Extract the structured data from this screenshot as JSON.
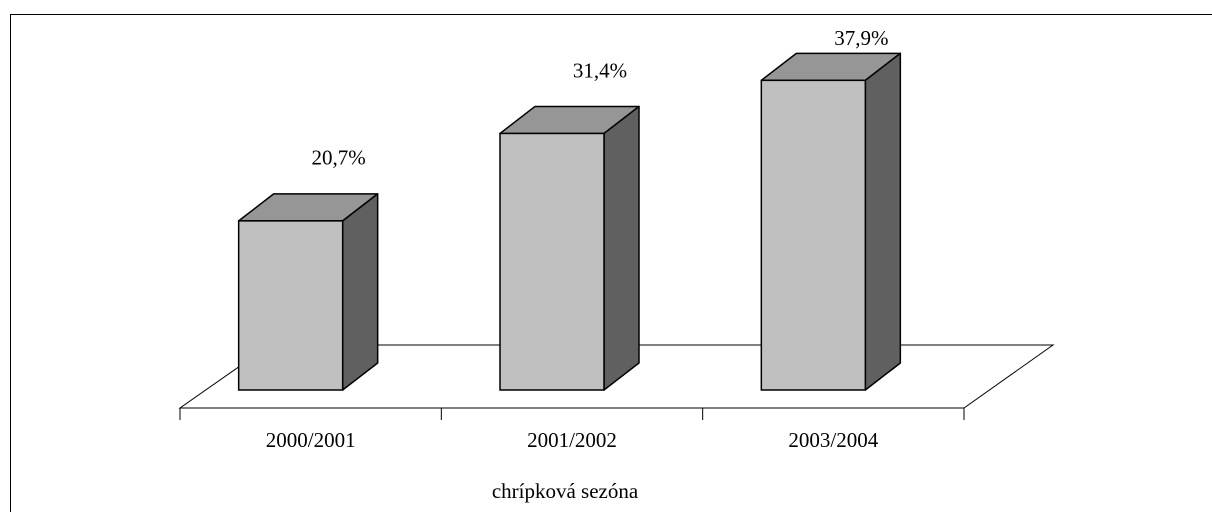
{
  "chart_data": {
    "type": "bar3d",
    "categories": [
      "2000/2001",
      "2001/2002",
      "2003/2004"
    ],
    "values": [
      20.7,
      31.4,
      37.9
    ],
    "value_labels": [
      "20,7%",
      "31,4%",
      "37,9%"
    ],
    "x_label": "chrípková sezóna",
    "color": "#c0c0c0"
  }
}
